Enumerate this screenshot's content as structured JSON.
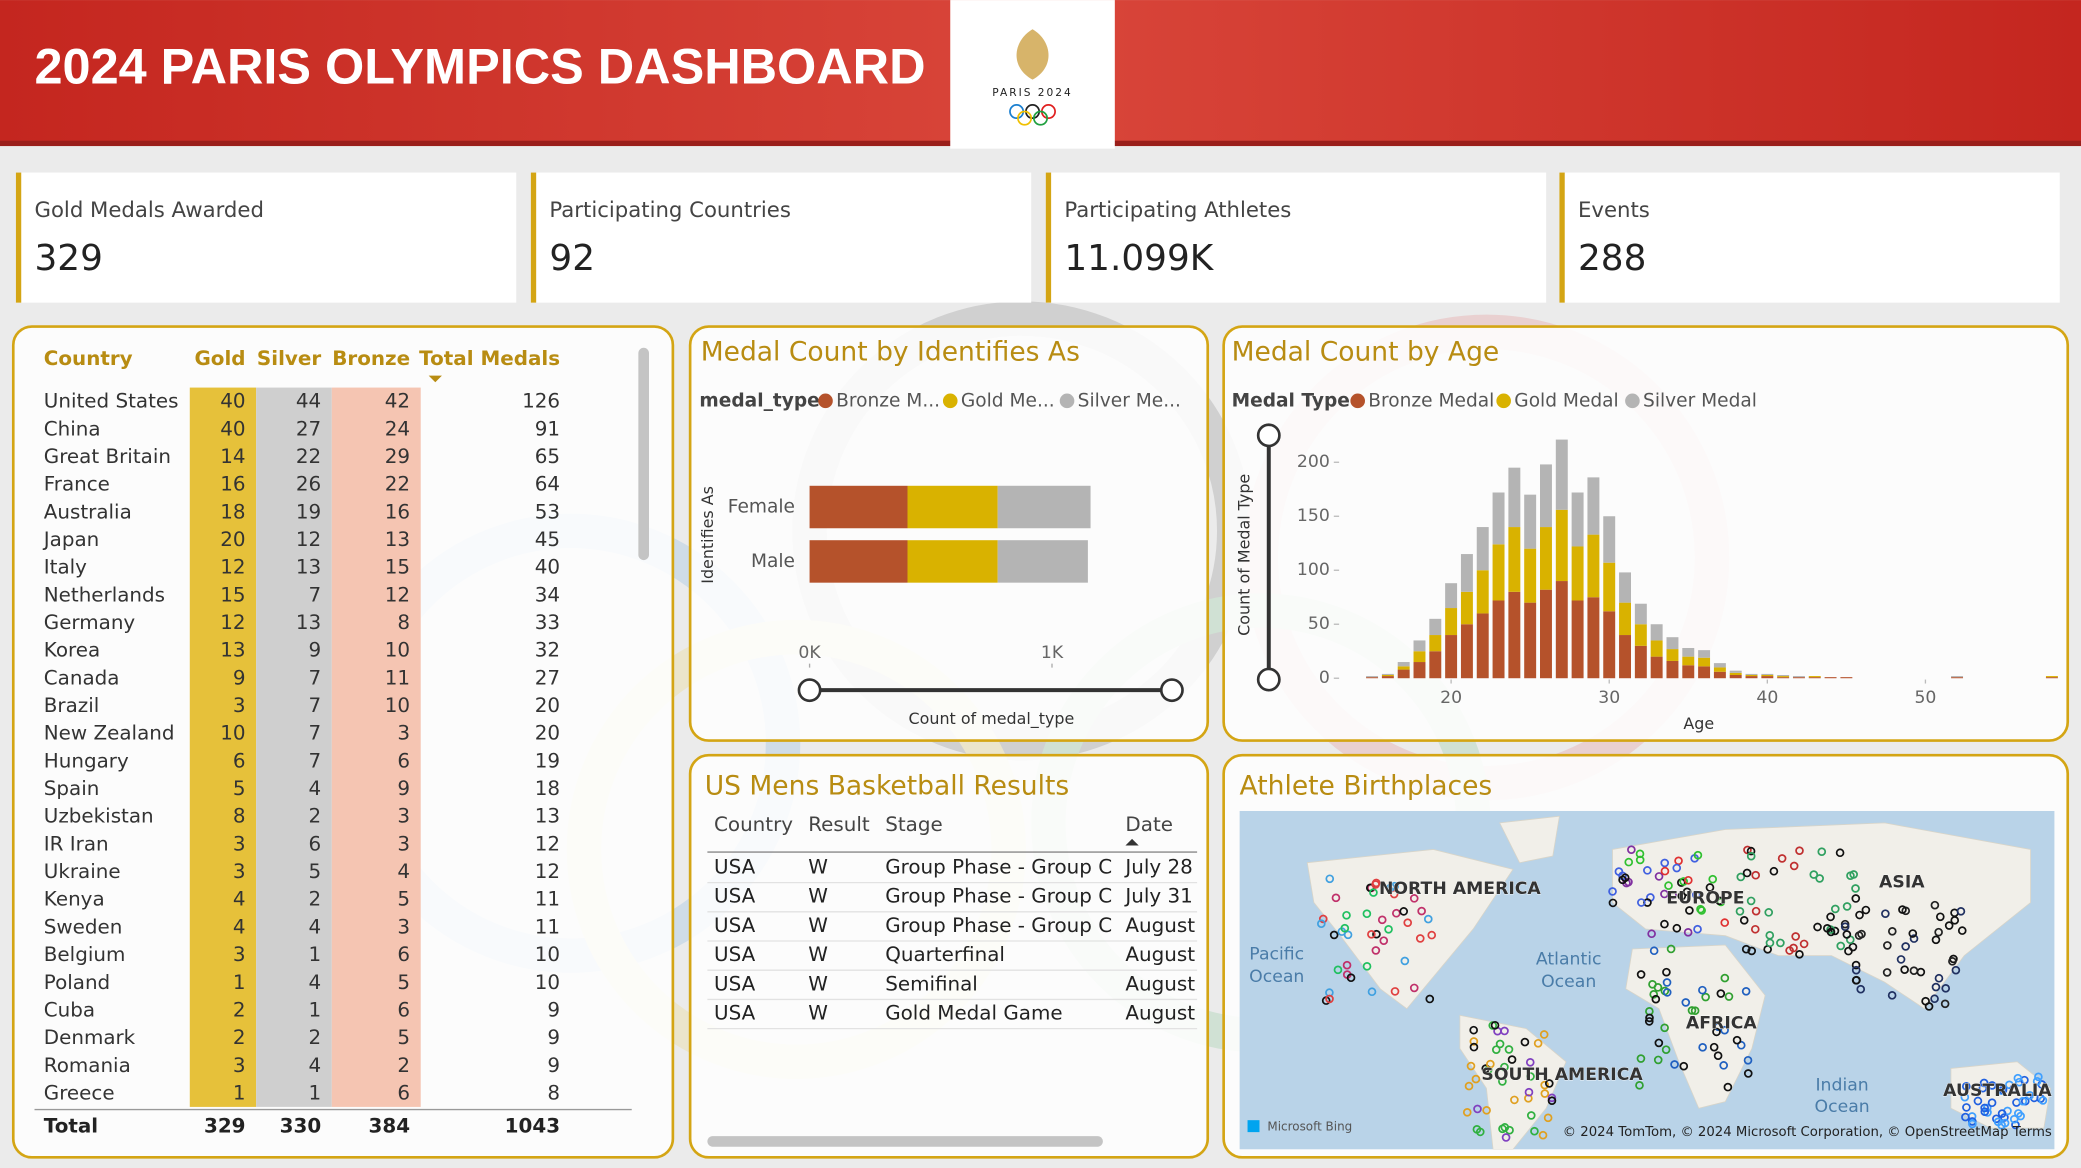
{
  "header": {
    "title": "2024 PARIS OLYMPICS DASHBOARD",
    "logo_text": "PARIS 2024"
  },
  "kpis": [
    {
      "label": "Gold Medals Awarded",
      "value": "329"
    },
    {
      "label": "Participating Countries",
      "value": "92"
    },
    {
      "label": "Participating Athletes",
      "value": "11.099K"
    },
    {
      "label": "Events",
      "value": "288"
    }
  ],
  "medal_table": {
    "columns": [
      "Country",
      "Gold",
      "Silver",
      "Bronze",
      "Total Medals"
    ],
    "rows": [
      [
        "United States",
        40,
        44,
        42,
        126
      ],
      [
        "China",
        40,
        27,
        24,
        91
      ],
      [
        "Great Britain",
        14,
        22,
        29,
        65
      ],
      [
        "France",
        16,
        26,
        22,
        64
      ],
      [
        "Australia",
        18,
        19,
        16,
        53
      ],
      [
        "Japan",
        20,
        12,
        13,
        45
      ],
      [
        "Italy",
        12,
        13,
        15,
        40
      ],
      [
        "Netherlands",
        15,
        7,
        12,
        34
      ],
      [
        "Germany",
        12,
        13,
        8,
        33
      ],
      [
        "Korea",
        13,
        9,
        10,
        32
      ],
      [
        "Canada",
        9,
        7,
        11,
        27
      ],
      [
        "Brazil",
        3,
        7,
        10,
        20
      ],
      [
        "New Zealand",
        10,
        7,
        3,
        20
      ],
      [
        "Hungary",
        6,
        7,
        6,
        19
      ],
      [
        "Spain",
        5,
        4,
        9,
        18
      ],
      [
        "Uzbekistan",
        8,
        2,
        3,
        13
      ],
      [
        "IR Iran",
        3,
        6,
        3,
        12
      ],
      [
        "Ukraine",
        3,
        5,
        4,
        12
      ],
      [
        "Kenya",
        4,
        2,
        5,
        11
      ],
      [
        "Sweden",
        4,
        4,
        3,
        11
      ],
      [
        "Belgium",
        3,
        1,
        6,
        10
      ],
      [
        "Poland",
        1,
        4,
        5,
        10
      ],
      [
        "Cuba",
        2,
        1,
        6,
        9
      ],
      [
        "Denmark",
        2,
        2,
        5,
        9
      ],
      [
        "Romania",
        3,
        4,
        2,
        9
      ],
      [
        "Greece",
        1,
        1,
        6,
        8
      ]
    ],
    "total": [
      "Total",
      329,
      330,
      384,
      1043
    ]
  },
  "chart_data": [
    {
      "type": "hbar-stacked",
      "title": "Medal Count by Identifies As",
      "legend_title": "medal_type",
      "y_label": "Identifies As",
      "x_label": "Count of medal_type",
      "categories": [
        "Female",
        "Male"
      ],
      "series": [
        {
          "name": "Bronze M...",
          "color": "#b5522b",
          "values": [
            404,
            404
          ]
        },
        {
          "name": "Gold Me...",
          "color": "#d9b200",
          "values": [
            372,
            372
          ]
        },
        {
          "name": "Silver Me...",
          "color": "#b4b4b4",
          "values": [
            383,
            372
          ]
        }
      ],
      "xlim": [
        0,
        1500
      ],
      "xticks": [
        {
          "value": 0,
          "label": "0K"
        },
        {
          "value": 1000,
          "label": "1K"
        }
      ]
    },
    {
      "type": "vbar-stacked",
      "title": "Medal Count by Age",
      "legend_title": "Medal Type",
      "y_label": "Count of Medal Type",
      "x_label": "Age",
      "x": [
        15,
        16,
        17,
        18,
        19,
        20,
        21,
        22,
        23,
        24,
        25,
        26,
        27,
        28,
        29,
        30,
        31,
        32,
        33,
        34,
        35,
        36,
        37,
        38,
        39,
        40,
        41,
        42,
        43,
        44,
        45,
        52,
        58
      ],
      "series": [
        {
          "name": "Bronze Medal",
          "color": "#b5522b",
          "values": [
            1,
            2,
            8,
            15,
            25,
            40,
            50,
            60,
            72,
            80,
            70,
            82,
            90,
            72,
            75,
            62,
            40,
            30,
            20,
            16,
            12,
            11,
            6,
            3,
            2,
            2,
            1,
            1,
            1,
            1,
            1,
            1,
            1
          ]
        },
        {
          "name": "Gold Medal",
          "color": "#d9b200",
          "values": [
            0,
            1,
            3,
            10,
            15,
            25,
            30,
            40,
            52,
            60,
            50,
            58,
            66,
            50,
            58,
            45,
            30,
            20,
            15,
            11,
            8,
            8,
            4,
            2,
            1,
            1,
            1,
            0,
            1,
            0,
            0,
            0,
            1
          ]
        },
        {
          "name": "Silver Medal",
          "color": "#b4b4b4",
          "values": [
            1,
            1,
            4,
            10,
            15,
            23,
            35,
            40,
            48,
            55,
            50,
            58,
            65,
            50,
            53,
            43,
            28,
            19,
            15,
            11,
            8,
            7,
            4,
            2,
            1,
            1,
            1,
            1,
            0,
            0,
            0,
            1,
            0
          ]
        }
      ],
      "xlim": [
        13,
        59
      ],
      "xticks": [
        20,
        30,
        40,
        50
      ],
      "ylim": [
        0,
        220
      ],
      "yticks": [
        0,
        50,
        100,
        150,
        200
      ]
    }
  ],
  "basketball": {
    "title": "US Mens Basketball Results",
    "columns": [
      "Country",
      "Result",
      "Stage",
      "Date"
    ],
    "rows": [
      [
        "USA",
        "W",
        "Group Phase - Group C",
        "July 28"
      ],
      [
        "USA",
        "W",
        "Group Phase - Group C",
        "July 31"
      ],
      [
        "USA",
        "W",
        "Group Phase - Group C",
        "August"
      ],
      [
        "USA",
        "W",
        "Quarterfinal",
        "August"
      ],
      [
        "USA",
        "W",
        "Semifinal",
        "August"
      ],
      [
        "USA",
        "W",
        "Gold Medal Game",
        "August"
      ]
    ]
  },
  "map": {
    "title": "Athlete Birthplaces",
    "labels": [
      "NORTH AMERICA",
      "EUROPE",
      "ASIA",
      "AFRICA",
      "SOUTH AMERICA",
      "AUSTRALIA"
    ],
    "oceans": [
      "Pacific",
      "Ocean",
      "Atlantic",
      "Ocean",
      "Indian",
      "Ocean"
    ],
    "brand": "Microsoft Bing",
    "copyright": "© 2024 TomTom, © 2024 Microsoft Corporation, © OpenStreetMap Terms"
  }
}
